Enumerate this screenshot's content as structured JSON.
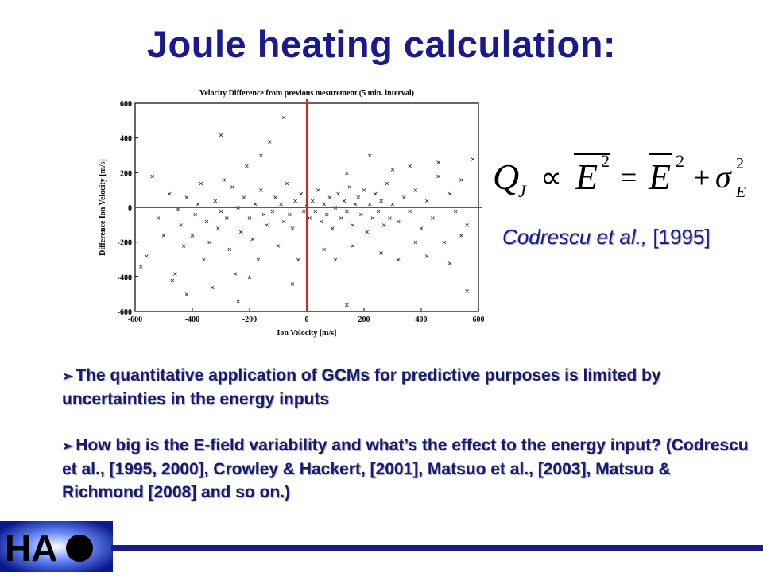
{
  "slide": {
    "title": "Joule heating calculation:",
    "citation": {
      "authors": "Codrescu et al.,",
      "year": "[1995]"
    },
    "bullets": [
      "The quantitative application of GCMs for predictive purposes is limited by uncertainties in the energy inputs",
      "How big is the E-field variability and what’s the effect to the energy input? (Codrescu et al., [1995, 2000], Crowley & Hackert, [2001], Matsuo et al., [2003], Matsuo & Richmond [2008] and so on.)"
    ],
    "formula": {
      "lhs": "Q",
      "lhs_sub": "J",
      "prop": "∝",
      "E": "E",
      "eq": "=",
      "plus": "+",
      "sigma": "σ",
      "sigma_sub": "E",
      "sq": "2"
    },
    "logo_text": "HA"
  },
  "colors": {
    "title": "#1a1a8c",
    "text": "#1a1a6c",
    "crosshair": "#e02020",
    "footer": "#1a1a8c"
  },
  "chart_data": {
    "type": "scatter",
    "title": "Velocity Difference from previous mesurement (5 min. interval)",
    "xlabel": "Ion Velocity [m/s]",
    "ylabel": "Difference Ion Velocity [m/s]",
    "xlim": [
      -600,
      600
    ],
    "ylim": [
      -600,
      600
    ],
    "xticks": [
      "-600",
      "-400",
      "-200",
      "0",
      "200",
      "400",
      "600"
    ],
    "yticks": [
      "600",
      "400",
      "200",
      "0",
      "-200",
      "-400",
      "-600"
    ],
    "reference_lines": {
      "x": 0,
      "y": 0
    },
    "points": [
      [
        -560,
        -280
      ],
      [
        -520,
        -60
      ],
      [
        -500,
        -160
      ],
      [
        -480,
        80
      ],
      [
        -470,
        -420
      ],
      [
        -460,
        -380
      ],
      [
        -450,
        -10
      ],
      [
        -440,
        -100
      ],
      [
        -430,
        -220
      ],
      [
        -420,
        60
      ],
      [
        -400,
        -160
      ],
      [
        -390,
        -40
      ],
      [
        -380,
        20
      ],
      [
        -370,
        140
      ],
      [
        -360,
        -300
      ],
      [
        -350,
        -80
      ],
      [
        -340,
        -200
      ],
      [
        -330,
        -460
      ],
      [
        -320,
        40
      ],
      [
        -310,
        -120
      ],
      [
        -300,
        -20
      ],
      [
        -290,
        160
      ],
      [
        -280,
        -60
      ],
      [
        -270,
        -240
      ],
      [
        -260,
        120
      ],
      [
        -250,
        -380
      ],
      [
        -240,
        0
      ],
      [
        -230,
        -140
      ],
      [
        -220,
        60
      ],
      [
        -210,
        240
      ],
      [
        -200,
        -60
      ],
      [
        -190,
        -180
      ],
      [
        -180,
        20
      ],
      [
        -170,
        -300
      ],
      [
        -160,
        100
      ],
      [
        -150,
        -40
      ],
      [
        -140,
        -100
      ],
      [
        -130,
        380
      ],
      [
        -120,
        -20
      ],
      [
        -110,
        60
      ],
      [
        -100,
        -220
      ],
      [
        -90,
        20
      ],
      [
        -80,
        -80
      ],
      [
        -70,
        140
      ],
      [
        -60,
        -40
      ],
      [
        -50,
        -120
      ],
      [
        -40,
        40
      ],
      [
        -30,
        -300
      ],
      [
        -20,
        80
      ],
      [
        -10,
        -20
      ],
      [
        0,
        20
      ],
      [
        10,
        -60
      ],
      [
        20,
        40
      ],
      [
        30,
        -20
      ],
      [
        40,
        100
      ],
      [
        50,
        -80
      ],
      [
        60,
        20
      ],
      [
        70,
        -40
      ],
      [
        80,
        60
      ],
      [
        90,
        -120
      ],
      [
        100,
        0
      ],
      [
        110,
        80
      ],
      [
        120,
        -60
      ],
      [
        130,
        40
      ],
      [
        140,
        -20
      ],
      [
        150,
        120
      ],
      [
        160,
        -100
      ],
      [
        170,
        20
      ],
      [
        180,
        60
      ],
      [
        190,
        -40
      ],
      [
        200,
        100
      ],
      [
        210,
        -140
      ],
      [
        220,
        20
      ],
      [
        230,
        -60
      ],
      [
        240,
        80
      ],
      [
        250,
        -20
      ],
      [
        260,
        40
      ],
      [
        270,
        -100
      ],
      [
        280,
        140
      ],
      [
        290,
        -60
      ],
      [
        300,
        20
      ],
      [
        320,
        -80
      ],
      [
        340,
        60
      ],
      [
        360,
        -20
      ],
      [
        380,
        100
      ],
      [
        400,
        -120
      ],
      [
        420,
        40
      ],
      [
        440,
        -60
      ],
      [
        460,
        180
      ],
      [
        480,
        -200
      ],
      [
        500,
        80
      ],
      [
        520,
        -20
      ],
      [
        540,
        160
      ],
      [
        560,
        -100
      ],
      [
        580,
        280
      ],
      [
        -580,
        -340
      ],
      [
        -540,
        180
      ],
      [
        -300,
        420
      ],
      [
        -200,
        -400
      ],
      [
        -160,
        300
      ],
      [
        -80,
        520
      ],
      [
        -50,
        -440
      ],
      [
        60,
        -240
      ],
      [
        100,
        -300
      ],
      [
        140,
        200
      ],
      [
        160,
        -220
      ],
      [
        220,
        300
      ],
      [
        260,
        -260
      ],
      [
        300,
        220
      ],
      [
        320,
        -300
      ],
      [
        360,
        240
      ],
      [
        380,
        -200
      ],
      [
        420,
        -280
      ],
      [
        460,
        260
      ],
      [
        500,
        -320
      ],
      [
        540,
        -160
      ],
      [
        560,
        -480
      ],
      [
        140,
        -560
      ],
      [
        -240,
        -540
      ],
      [
        -420,
        -500
      ]
    ]
  }
}
